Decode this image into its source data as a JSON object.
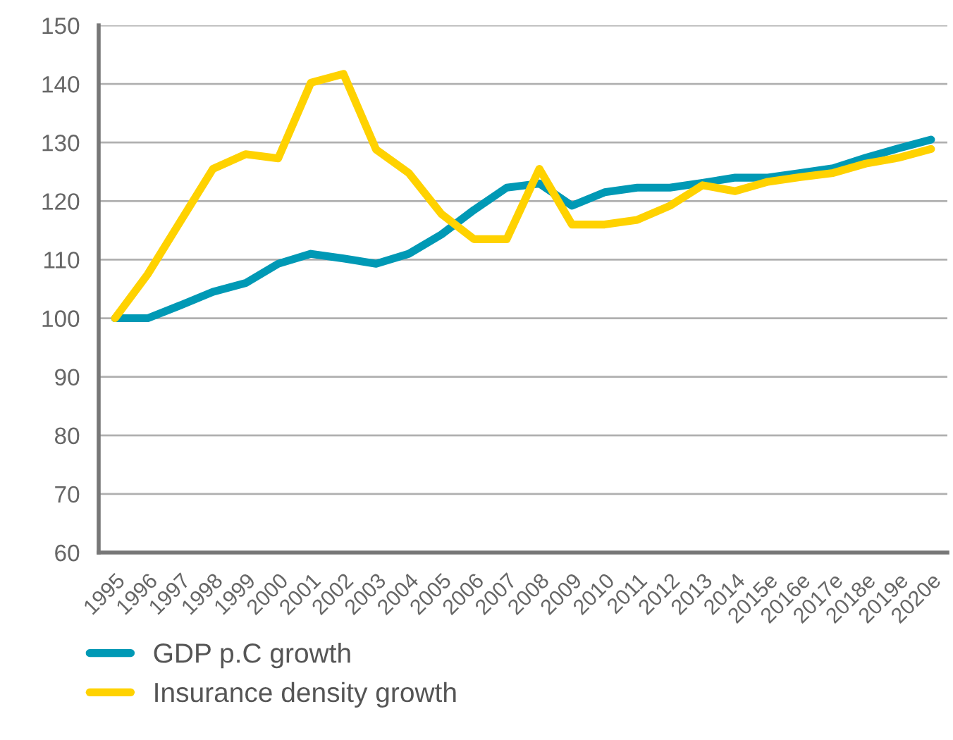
{
  "chart_data": {
    "type": "line",
    "categories": [
      "1995",
      "1996",
      "1997",
      "1998",
      "1999",
      "2000",
      "2001",
      "2002",
      "2003",
      "2004",
      "2005",
      "2006",
      "2007",
      "2008",
      "2009",
      "2010",
      "2011",
      "2012",
      "2013",
      "2014",
      "2015e",
      "2016e",
      "2017e",
      "2018e",
      "2019e",
      "2020e"
    ],
    "series": [
      {
        "name": "GDP p.C growth",
        "color": "#0099b5",
        "values": [
          100,
          100,
          102.2,
          104.5,
          106,
          109.3,
          111,
          110.2,
          109.3,
          111,
          114.3,
          118.5,
          122.3,
          123,
          119.2,
          121.5,
          122.3,
          122.3,
          123.1,
          124,
          124,
          124.8,
          125.6,
          127.4,
          129,
          130.5
        ]
      },
      {
        "name": "Insurance density growth",
        "color": "#ffd200",
        "values": [
          100,
          107.5,
          116.5,
          125.5,
          128,
          127.3,
          140.2,
          141.7,
          128.8,
          124.8,
          117.8,
          113.5,
          113.5,
          125.5,
          116,
          116,
          116.8,
          119.2,
          122.7,
          121.7,
          123.3,
          124.1,
          124.8,
          126.4,
          127.4,
          128.9
        ]
      }
    ],
    "ylim": [
      60,
      150
    ],
    "yticks": [
      60,
      70,
      80,
      90,
      100,
      110,
      120,
      130,
      140,
      150
    ],
    "grid": "y",
    "legend": "bottom left",
    "marker": "none",
    "line_style": "solid"
  }
}
